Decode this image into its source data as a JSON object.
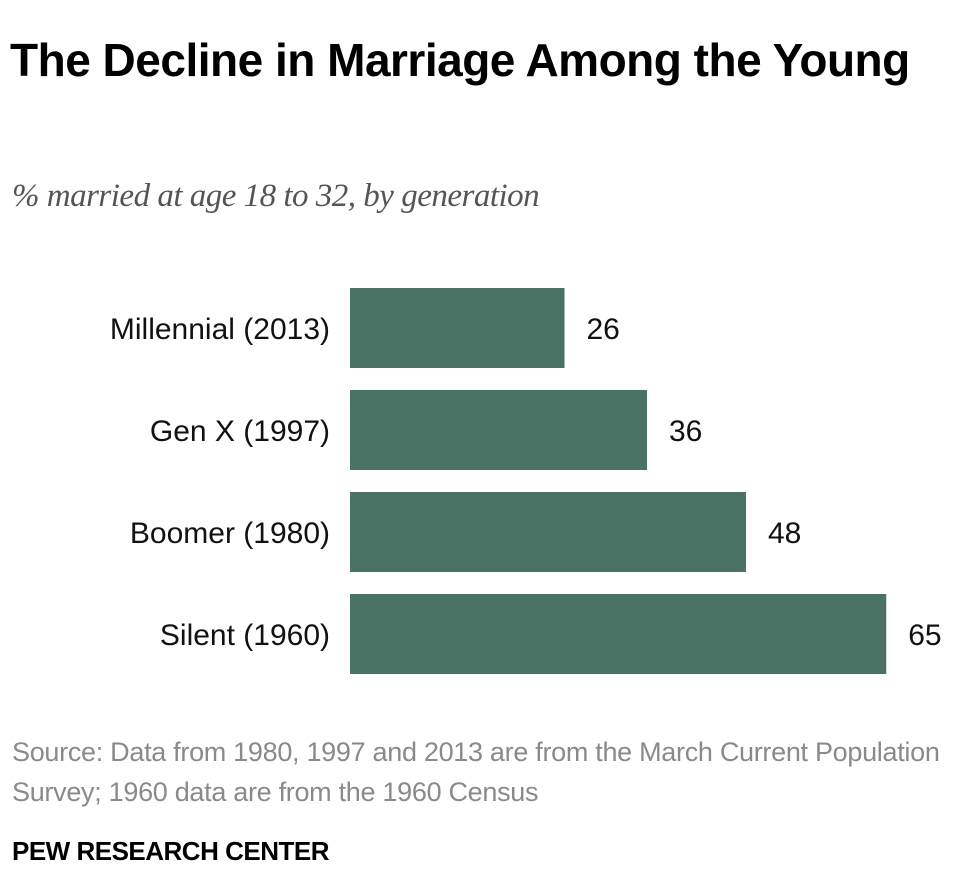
{
  "chart_data": {
    "type": "bar",
    "orientation": "horizontal",
    "title": "The Decline in Marriage Among the Young",
    "subtitle": "% married at age 18 to 32, by generation",
    "categories": [
      "Millennial (2013)",
      "Gen X (1997)",
      "Boomer (1980)",
      "Silent (1960)"
    ],
    "values": [
      26,
      36,
      48,
      65
    ],
    "xlabel": "",
    "ylabel": "",
    "xlim": [
      0,
      70
    ],
    "grid": false,
    "legend": "none",
    "bar_color": "#4a7265"
  },
  "source": "Source: Data from 1980, 1997 and 2013 are from the March Current Population Survey; 1960 data are from the 1960 Census",
  "brand": "PEW RESEARCH CENTER"
}
